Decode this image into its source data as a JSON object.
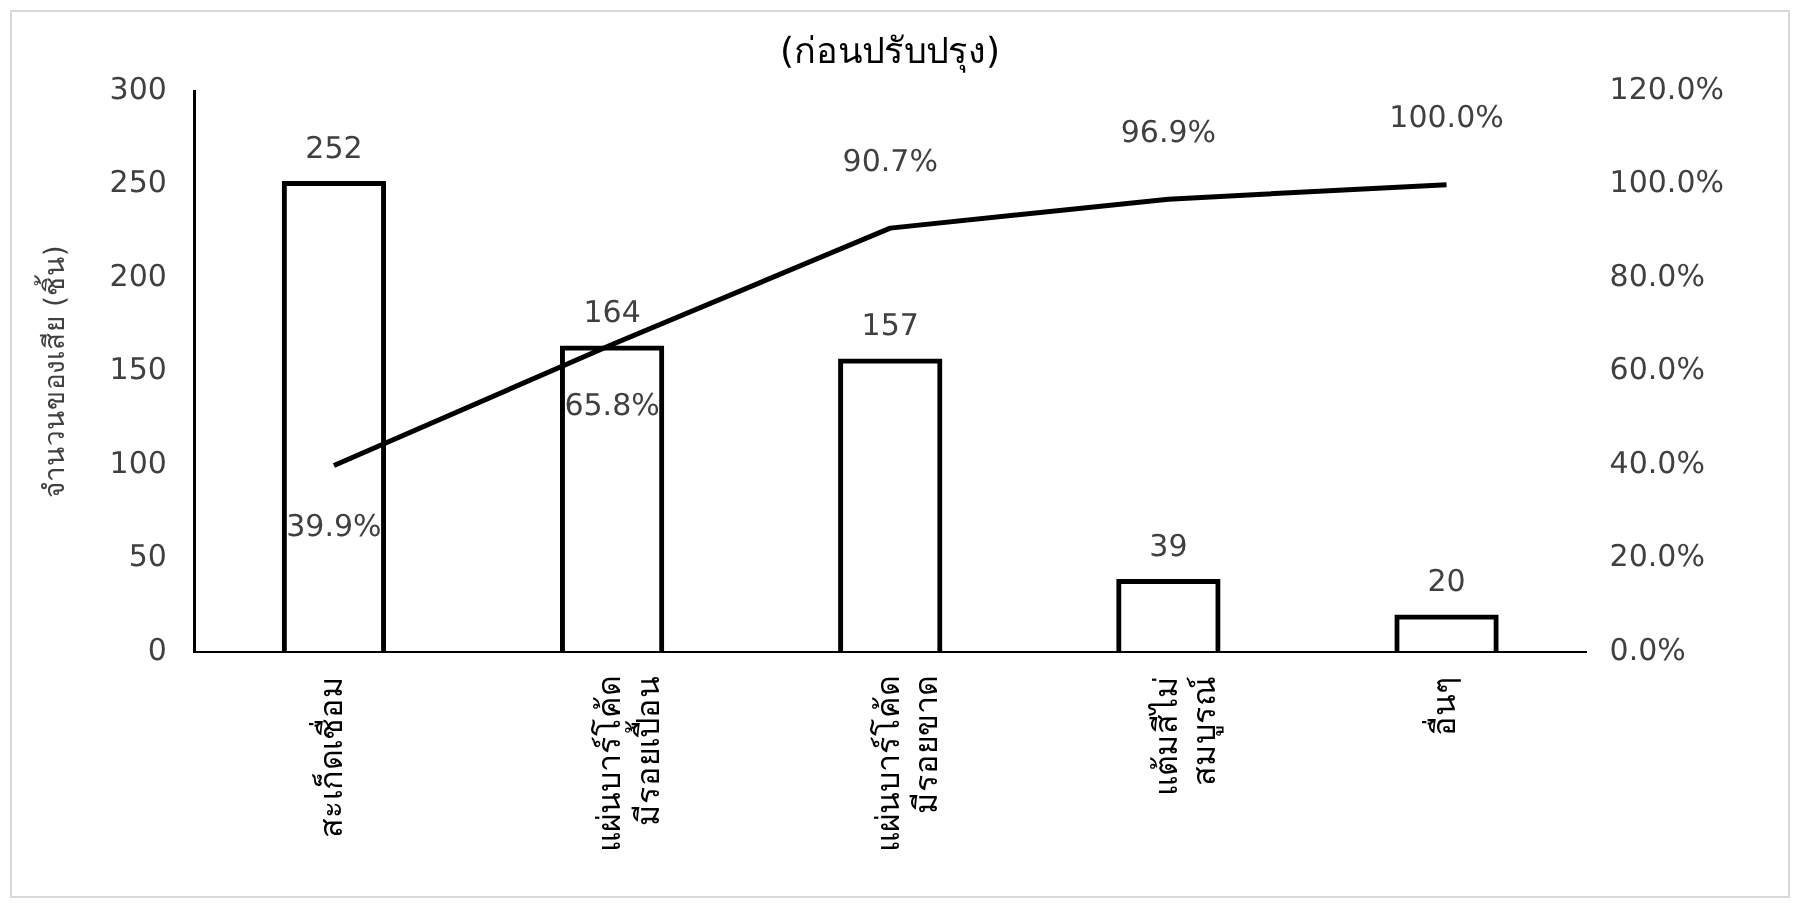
{
  "chart_data": {
    "type": "bar",
    "title": "(ก่อนปรับปรุง)",
    "ylabel": "จำนวนของเสีย (ชิ้น)",
    "categories": [
      "สะเก็ดเชื่อม",
      "แผ่นบาร์โค้ด\nมีรอยเปื้อน",
      "แผ่นบาร์โค้ด\nมีรอยขาด",
      "แต้มสีไม่\nสมบูรณ์",
      "อื่นๆ"
    ],
    "series": [
      {
        "color": "#000000",
        "values": [
          252,
          164,
          157,
          39,
          20
        ],
        "value_labels": [
          "252",
          "164",
          "157",
          "39",
          "20"
        ]
      },
      {
        "type": "line",
        "axis": "y2",
        "color": "#000000",
        "values": [
          39.9,
          65.8,
          90.7,
          96.9,
          100
        ],
        "value_labels": [
          "39.9%",
          "65.8%",
          "90.7%",
          "96.9%",
          "100.0%"
        ]
      }
    ],
    "ylim": [
      0,
      300
    ],
    "yticks": [
      0,
      50,
      100,
      150,
      200,
      250,
      300
    ],
    "y2lim": [
      0,
      120
    ],
    "y2ticks": [
      {
        "value": 0,
        "label": "0.0%"
      },
      {
        "value": 20,
        "label": "20.0%"
      },
      {
        "value": 40,
        "label": "40.0%"
      },
      {
        "value": 60,
        "label": "60.0%"
      },
      {
        "value": 80,
        "label": "80.0%"
      },
      {
        "value": 100,
        "label": "100.0%"
      },
      {
        "value": 120,
        "label": "120.0%"
      }
    ],
    "grid": false,
    "legend": false,
    "marker": "none"
  }
}
